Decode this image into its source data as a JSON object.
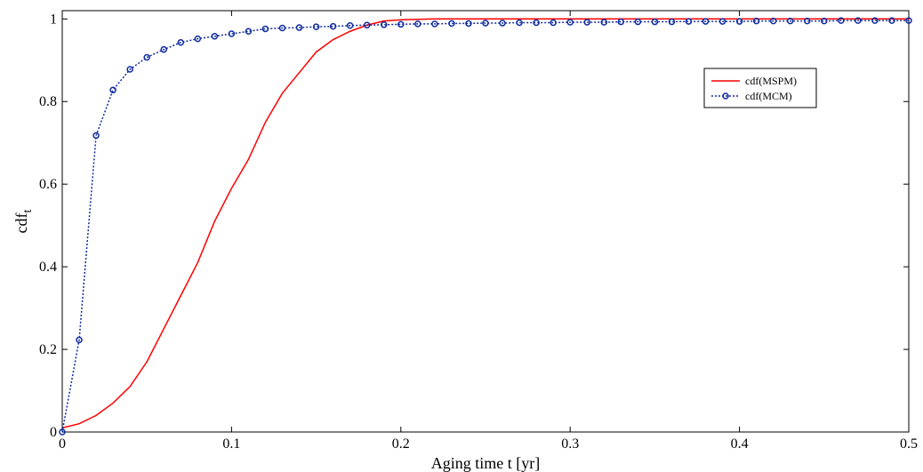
{
  "chart_data": {
    "type": "line",
    "xlabel": "Aging time t [yr]",
    "ylabel": "cdf",
    "ylabel_subscript": "t",
    "xlim": [
      0,
      0.5
    ],
    "ylim": [
      0,
      1.02
    ],
    "xticks": [
      0,
      0.1,
      0.2,
      0.3,
      0.4,
      0.5
    ],
    "xtick_labels": [
      "0",
      "0.1",
      "0.2",
      "0.3",
      "0.4",
      "0.5"
    ],
    "yticks": [
      0,
      0.2,
      0.4,
      0.6,
      0.8,
      1
    ],
    "ytick_labels": [
      "0",
      "0.2",
      "0.4",
      "0.6",
      "0.8",
      "1"
    ],
    "grid": false,
    "legend_position": "top-right",
    "series": [
      {
        "name": "cdf(MSPM)",
        "color": "#ff0000",
        "line_style": "solid",
        "marker": "none",
        "x": [
          0,
          0.01,
          0.02,
          0.03,
          0.04,
          0.05,
          0.06,
          0.07,
          0.08,
          0.09,
          0.1,
          0.11,
          0.12,
          0.13,
          0.14,
          0.15,
          0.16,
          0.17,
          0.18,
          0.19,
          0.2,
          0.22,
          0.25,
          0.3,
          0.35,
          0.4,
          0.45,
          0.5
        ],
        "y": [
          0.01,
          0.02,
          0.04,
          0.07,
          0.11,
          0.17,
          0.25,
          0.33,
          0.41,
          0.51,
          0.59,
          0.66,
          0.75,
          0.82,
          0.87,
          0.92,
          0.95,
          0.97,
          0.985,
          0.995,
          0.998,
          1.0,
          1.0,
          1.0,
          1.0,
          1.0,
          1.0,
          1.0
        ]
      },
      {
        "name": "cdf(MCM)",
        "color": "#0e2a9e",
        "line_style": "dotted",
        "marker": "circle",
        "x": [
          0,
          0.01,
          0.02,
          0.03,
          0.04,
          0.05,
          0.06,
          0.07,
          0.08,
          0.09,
          0.1,
          0.11,
          0.12,
          0.13,
          0.14,
          0.15,
          0.16,
          0.17,
          0.18,
          0.19,
          0.2,
          0.21,
          0.22,
          0.23,
          0.24,
          0.25,
          0.26,
          0.27,
          0.28,
          0.29,
          0.3,
          0.31,
          0.32,
          0.33,
          0.34,
          0.35,
          0.36,
          0.37,
          0.38,
          0.39,
          0.4,
          0.41,
          0.42,
          0.43,
          0.44,
          0.45,
          0.46,
          0.47,
          0.48,
          0.49,
          0.5
        ],
        "y": [
          0.0,
          0.223,
          0.718,
          0.828,
          0.878,
          0.907,
          0.926,
          0.943,
          0.952,
          0.958,
          0.964,
          0.97,
          0.976,
          0.978,
          0.979,
          0.981,
          0.982,
          0.984,
          0.985,
          0.986,
          0.987,
          0.988,
          0.988,
          0.989,
          0.989,
          0.99,
          0.99,
          0.991,
          0.991,
          0.991,
          0.992,
          0.992,
          0.992,
          0.993,
          0.993,
          0.993,
          0.993,
          0.994,
          0.994,
          0.994,
          0.994,
          0.995,
          0.995,
          0.995,
          0.995,
          0.995,
          0.996,
          0.996,
          0.996,
          0.996,
          0.996
        ]
      }
    ]
  }
}
